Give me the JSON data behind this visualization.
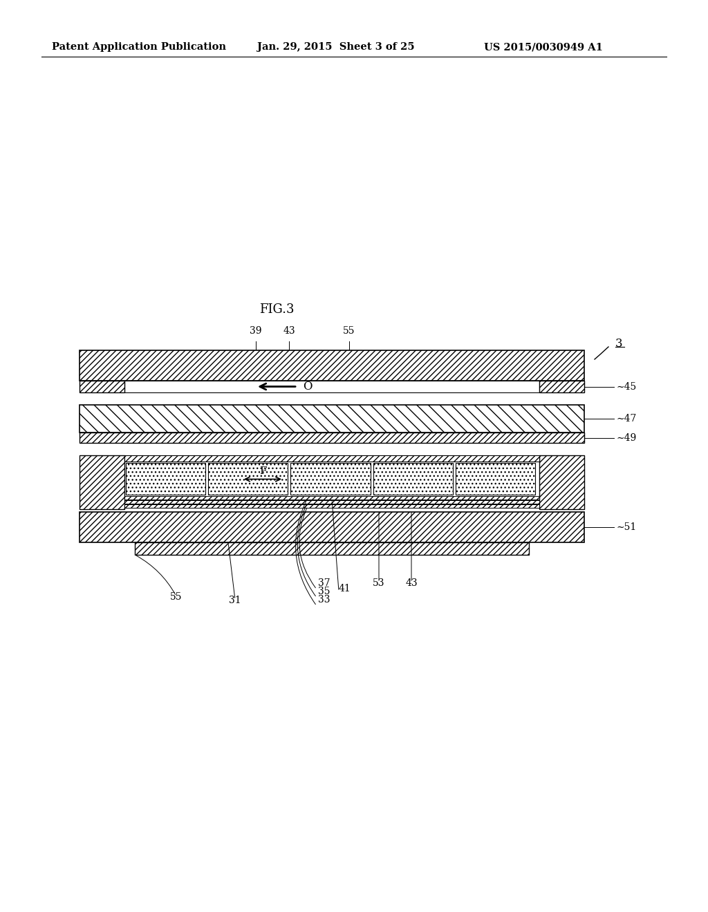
{
  "header_left": "Patent Application Publication",
  "header_mid": "Jan. 29, 2015  Sheet 3 of 25",
  "header_right": "US 2015/0030949 A1",
  "title": "FIG.3",
  "bg_color": "#ffffff"
}
